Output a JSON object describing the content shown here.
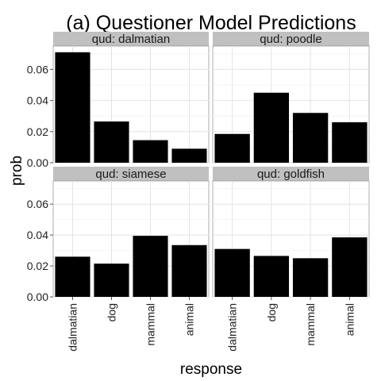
{
  "chart_data": {
    "type": "bar",
    "title": "(a) Questioner Model Predictions",
    "xlabel": "response",
    "ylabel": "prob",
    "categories": [
      "dalmatian",
      "dog",
      "mammal",
      "animal"
    ],
    "ylim": [
      0,
      0.075
    ],
    "yticks": [
      0.0,
      0.02,
      0.04,
      0.06
    ],
    "ytick_labels": [
      "0.00",
      "0.02",
      "0.04",
      "0.06"
    ],
    "facet_grid": "2x2",
    "facets": [
      {
        "label": "qud: dalmatian",
        "values": [
          0.071,
          0.0265,
          0.0145,
          0.009
        ]
      },
      {
        "label": "qud: poodle",
        "values": [
          0.0185,
          0.045,
          0.032,
          0.026
        ]
      },
      {
        "label": "qud: siamese",
        "values": [
          0.026,
          0.0215,
          0.0395,
          0.0335
        ]
      },
      {
        "label": "qud: goldfish",
        "values": [
          0.031,
          0.0265,
          0.025,
          0.0385
        ]
      }
    ],
    "bar_color": "#000000",
    "panel_background": "#ffffff",
    "strip_background": "#c0c0c0",
    "grid": true,
    "legend": "none"
  }
}
